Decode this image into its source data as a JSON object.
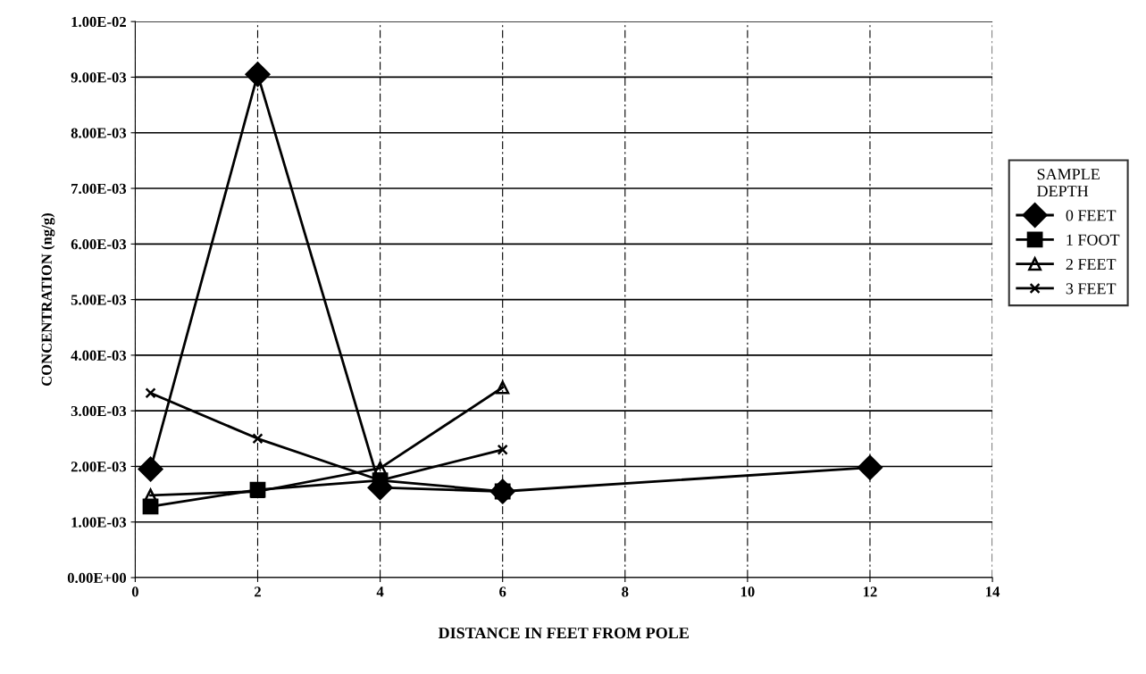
{
  "chart_data": {
    "type": "line",
    "xlabel": "DISTANCE IN FEET FROM POLE",
    "ylabel": "CONCENTRATION (ng/g)",
    "legend_title": "SAMPLE\nDEPTH",
    "legend": "right",
    "grid": true,
    "xlim": [
      0,
      14
    ],
    "xticks": [
      0,
      2,
      4,
      6,
      8,
      10,
      12,
      14
    ],
    "ylim": [
      0,
      0.01
    ],
    "yticks": [
      {
        "value": 0,
        "label": "0.00E+00"
      },
      {
        "value": 0.001,
        "label": "1.00E-03"
      },
      {
        "value": 0.002,
        "label": "2.00E-03"
      },
      {
        "value": 0.003,
        "label": "3.00E-03"
      },
      {
        "value": 0.004,
        "label": "4.00E-03"
      },
      {
        "value": 0.005,
        "label": "5.00E-03"
      },
      {
        "value": 0.006,
        "label": "6.00E-03"
      },
      {
        "value": 0.007,
        "label": "7.00E-03"
      },
      {
        "value": 0.008,
        "label": "8.00E-03"
      },
      {
        "value": 0.009,
        "label": "9.00E-03"
      },
      {
        "value": 0.01,
        "label": "1.00E-02"
      }
    ],
    "series": [
      {
        "name": "0 FEET",
        "color": "#000000",
        "marker": "diamond",
        "x": [
          0.25,
          2,
          4,
          6,
          12
        ],
        "values": [
          0.00195,
          0.00905,
          0.00162,
          0.00155,
          0.00198
        ]
      },
      {
        "name": "1 FOOT",
        "color": "#000000",
        "marker": "square",
        "x": [
          0.25,
          2,
          4,
          6
        ],
        "values": [
          0.00128,
          0.00158,
          0.00175,
          0.00155
        ]
      },
      {
        "name": "2 FEET",
        "color": "#000000",
        "marker": "triangle",
        "x": [
          0.25,
          2,
          4,
          6
        ],
        "values": [
          0.00148,
          0.00155,
          0.00197,
          0.00342
        ]
      },
      {
        "name": "3 FEET",
        "color": "#000000",
        "marker": "cross",
        "x": [
          0.25,
          2,
          4,
          6
        ],
        "values": [
          0.00332,
          0.0025,
          0.00175,
          0.0023
        ]
      }
    ]
  }
}
